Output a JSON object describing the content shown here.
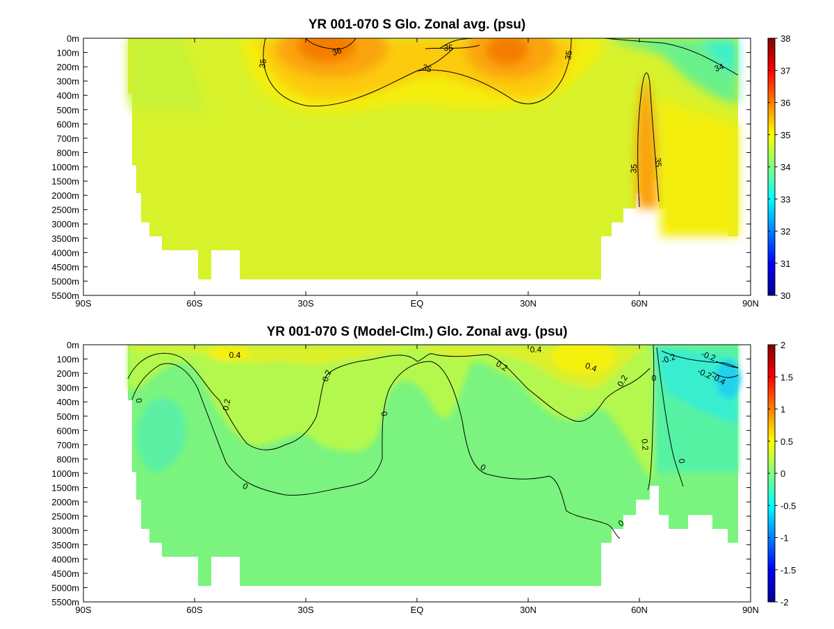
{
  "chart_data": [
    {
      "type": "heatmap",
      "title": "YR 001-070 S Glo. Zonal avg. (psu)",
      "xlabel": "",
      "ylabel": "",
      "x_ticks": [
        "90S",
        "60S",
        "30S",
        "EQ",
        "30N",
        "60N",
        "90N"
      ],
      "y_ticks": [
        "0m",
        "100m",
        "200m",
        "300m",
        "400m",
        "500m",
        "600m",
        "700m",
        "800m",
        "1000m",
        "1500m",
        "2000m",
        "2500m",
        "3000m",
        "3500m",
        "4000m",
        "4500m",
        "5000m",
        "5500m"
      ],
      "colorbar": {
        "min": 30,
        "max": 38,
        "ticks": [
          "30",
          "31",
          "32",
          "33",
          "34",
          "35",
          "36",
          "37",
          "38"
        ],
        "colormap": "jet"
      },
      "contour_labels": [
        "36",
        "35",
        "35",
        "35",
        "35",
        "35",
        "35",
        "34"
      ],
      "grid": false
    },
    {
      "type": "heatmap",
      "title": "YR 001-070 S (Model-Clm.) Glo. Zonal avg. (psu)",
      "xlabel": "",
      "ylabel": "",
      "x_ticks": [
        "90S",
        "60S",
        "30S",
        "EQ",
        "30N",
        "60N",
        "90N"
      ],
      "y_ticks": [
        "0m",
        "100m",
        "200m",
        "300m",
        "400m",
        "500m",
        "600m",
        "700m",
        "800m",
        "1000m",
        "1500m",
        "2000m",
        "2500m",
        "3000m",
        "3500m",
        "4000m",
        "4500m",
        "5000m",
        "5500m"
      ],
      "colorbar": {
        "min": -2,
        "max": 2,
        "ticks": [
          "-2",
          "-1.5",
          "-1",
          "-0.5",
          "0",
          "0.5",
          "1",
          "1.5",
          "2"
        ],
        "colormap": "jet"
      },
      "contour_labels": [
        "0.4",
        "0.2",
        "0.2",
        "0",
        "0",
        "0",
        "0",
        "0.2",
        "0.4",
        "0.4",
        "0.2",
        "0",
        "0.2",
        "0",
        "0",
        "-0.2",
        "-0.2",
        "-0.4",
        "-0.2"
      ],
      "grid": false
    }
  ],
  "colors": {
    "map_top": {
      "plateau": "#d8f22c",
      "warm_1": "#f4ee10",
      "warm_2": "#fccb0c",
      "warm_3": "#fba507",
      "warm_4": "#f47d04",
      "arctic": "#6af08a",
      "arctic_deep": "#3ff0c8"
    },
    "map_bottom": {
      "plateau": "#7af47e",
      "pos_low": "#b4f84e",
      "pos_mid": "#dcf02a",
      "pos_high": "#f6f011",
      "neg_low": "#56f2a4",
      "neg_mid": "#38eecf",
      "neg_high": "#20d2ec"
    }
  }
}
